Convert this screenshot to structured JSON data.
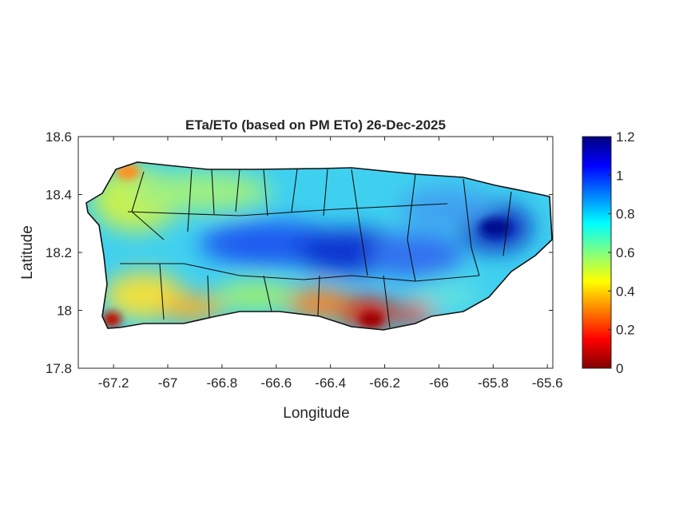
{
  "chart_data": {
    "type": "heatmap",
    "title": "ETa/ETo (based on PM ETo) 26-Dec-2025",
    "xlabel": "Longitude",
    "ylabel": "Latitude",
    "xlim": [
      -67.33,
      -65.58
    ],
    "ylim": [
      17.8,
      18.6
    ],
    "xticks": [
      -67.2,
      -67,
      -66.8,
      -66.6,
      -66.4,
      -66.2,
      -66,
      -65.8,
      -65.6
    ],
    "xtick_labels": [
      "-67.2",
      "-67",
      "-66.8",
      "-66.6",
      "-66.4",
      "-66.2",
      "-66",
      "-65.8",
      "-65.6"
    ],
    "yticks": [
      17.8,
      18,
      18.2,
      18.4,
      18.6
    ],
    "ytick_labels": [
      "17.8",
      "18",
      "18.2",
      "18.4",
      "18.6"
    ],
    "colorbar": {
      "colormap": "jet",
      "range": [
        0,
        1.2
      ],
      "ticks": [
        0,
        0.2,
        0.4,
        0.6,
        0.8,
        1,
        1.2
      ],
      "tick_labels": [
        "0",
        "0.2",
        "0.4",
        "0.6",
        "0.8",
        "1",
        "1.2"
      ]
    },
    "region": "Puerto Rico municipalities"
  }
}
